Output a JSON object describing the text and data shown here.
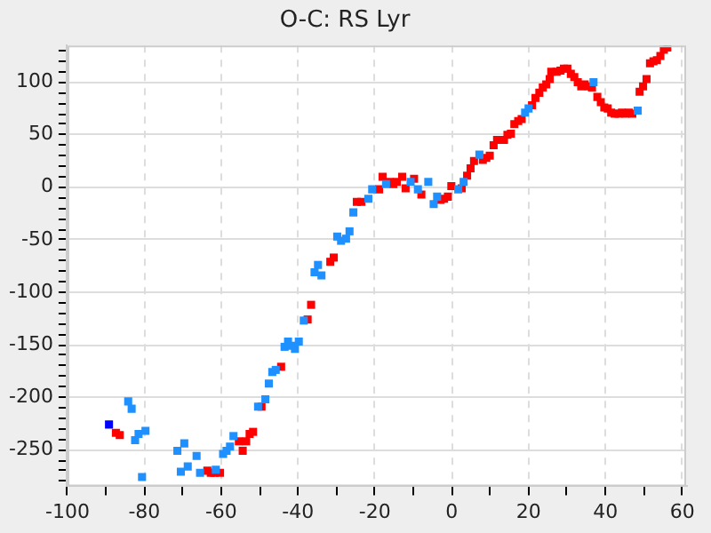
{
  "chart_data": {
    "type": "scatter",
    "title": "O-C: RS Lyr",
    "marker": "square",
    "grid": true,
    "xlim": [
      -100,
      61
    ],
    "ylim": [
      -285,
      135
    ],
    "xticks": [
      -100,
      {
        "value": -90,
        "label": null
      },
      -80,
      {
        "value": -70,
        "label": null
      },
      -60,
      {
        "value": -50,
        "label": null
      },
      -40,
      {
        "value": -30,
        "label": null
      },
      -20,
      {
        "value": -10,
        "label": null
      },
      0,
      {
        "value": 10,
        "label": null
      },
      20,
      {
        "value": 30,
        "label": null
      },
      40,
      {
        "value": 50,
        "label": null
      },
      60
    ],
    "yticks": [
      {
        "value": -280,
        "label": null
      },
      {
        "value": -270,
        "label": null
      },
      {
        "value": -260,
        "label": null
      },
      -250,
      {
        "value": -240,
        "label": null
      },
      {
        "value": -230,
        "label": null
      },
      {
        "value": -220,
        "label": null
      },
      {
        "value": -210,
        "label": null
      },
      -200,
      {
        "value": -190,
        "label": null
      },
      {
        "value": -180,
        "label": null
      },
      {
        "value": -170,
        "label": null
      },
      {
        "value": -160,
        "label": null
      },
      -150,
      {
        "value": -140,
        "label": null
      },
      {
        "value": -130,
        "label": null
      },
      {
        "value": -120,
        "label": null
      },
      {
        "value": -110,
        "label": null
      },
      -100,
      {
        "value": -90,
        "label": null
      },
      {
        "value": -80,
        "label": null
      },
      {
        "value": -70,
        "label": null
      },
      {
        "value": -60,
        "label": null
      },
      -50,
      {
        "value": -40,
        "label": null
      },
      {
        "value": -30,
        "label": null
      },
      {
        "value": -20,
        "label": null
      },
      {
        "value": -10,
        "label": null
      },
      0,
      {
        "value": 10,
        "label": null
      },
      {
        "value": 20,
        "label": null
      },
      {
        "value": 30,
        "label": null
      },
      {
        "value": 40,
        "label": null
      },
      50,
      {
        "value": 60,
        "label": null
      },
      {
        "value": 70,
        "label": null
      },
      {
        "value": 80,
        "label": null
      },
      {
        "value": 90,
        "label": null
      },
      100,
      {
        "value": 110,
        "label": null
      },
      {
        "value": 120,
        "label": null
      },
      {
        "value": 130,
        "label": null
      }
    ],
    "series": [
      {
        "color": "#1e90ff",
        "x": [
          -84.2,
          -83.3,
          -82.4,
          -81.5,
          -79.7,
          -80.6,
          -71.4,
          -69.6,
          -70.5,
          -68.7,
          -67.3,
          -66.4,
          -65.5,
          -61.4,
          -59.5,
          -58.6,
          -57.7,
          -56.8,
          -50.4,
          -48.5,
          -47.6,
          -46.7,
          -45.8,
          -43.5,
          -42.6,
          -41.7,
          -40.8,
          -39.8,
          -38.5,
          -35.7,
          -33.9,
          -34.8,
          -29.8,
          -28.8,
          -27.5,
          -26.6,
          -25.6,
          -21.7,
          -20.7,
          -17.1,
          -10.7,
          -8.8,
          -6.1,
          -4.7,
          -3.8,
          1.7,
          3.1,
          7.2,
          19.1,
          20,
          36.9,
          48.4
        ],
        "values": [
          -204,
          -211,
          -241,
          -235,
          -232,
          -276,
          -251,
          -244,
          -271,
          -266,
          null,
          -256,
          -272,
          -269,
          -254,
          -251,
          -247,
          -237,
          -209,
          -202,
          -187,
          -176,
          -174,
          -152,
          -147,
          -151,
          -154,
          -147,
          -127,
          -81,
          -84,
          -74,
          -47,
          -51,
          -49,
          -42,
          -24,
          -11,
          -2,
          3,
          5,
          -2,
          5,
          -16,
          -9,
          -2,
          5,
          31,
          71,
          75,
          100,
          73
        ]
      },
      {
        "color": "#ff0000",
        "x": [
          -87.4,
          -86.4,
          -63.6,
          -62.7,
          -61.8,
          -60.3,
          -55.4,
          -54.4,
          -53.5,
          -52.6,
          -51.7,
          -49.5,
          -44.4,
          -37.5,
          -36.6,
          -31.6,
          -30.7,
          -24.7,
          -23.5,
          -18.9,
          -18,
          -16.2,
          -15.2,
          -14.3,
          -12.9,
          -12,
          -9.8,
          -7.9,
          -2.9,
          -2,
          -1,
          -0.1,
          2.6,
          4,
          4.9,
          5.8,
          8.1,
          9,
          9.9,
          10.9,
          11.8,
          13.6,
          14.5,
          15.4,
          16.3,
          17.3,
          18.2,
          20.9,
          21.8,
          22.8,
          23.7,
          24.6,
          25.5,
          25.9,
          27.3,
          28.3,
          29.2,
          30.1,
          31,
          31.9,
          32.8,
          33.7,
          34.6,
          35.6,
          36.5,
          37.9,
          38.8,
          39.7,
          40.6,
          41.5,
          42.4,
          43.4,
          44.3,
          45.2,
          46.1,
          47,
          48.9,
          49.8,
          50.7,
          51.6,
          52.5,
          53.4,
          54.3,
          55.2,
          56.1
        ],
        "values": [
          -234,
          -236,
          -270,
          -272,
          -272,
          -272,
          -242,
          -251,
          -242,
          -235,
          -233,
          -209,
          -171,
          -126,
          -112,
          -71,
          -67,
          -14,
          -14,
          -2,
          10,
          5,
          3,
          5,
          10,
          -1,
          8,
          -7,
          -12,
          -11,
          -9,
          1,
          -1,
          11,
          18,
          25,
          26,
          28,
          30,
          40,
          45,
          45,
          50,
          51,
          60,
          63,
          65,
          78,
          85,
          90,
          95,
          98,
          103,
          110,
          110,
          111,
          113,
          113,
          108,
          105,
          100,
          96,
          98,
          96,
          95,
          86,
          81,
          76,
          75,
          71,
          70,
          70,
          71,
          70,
          71,
          70,
          91,
          96,
          103,
          118,
          120,
          121,
          125,
          131,
          133
        ]
      },
      {
        "color": "#0000ff",
        "x": [
          -89.2
        ],
        "values": [
          -226
        ]
      }
    ]
  }
}
